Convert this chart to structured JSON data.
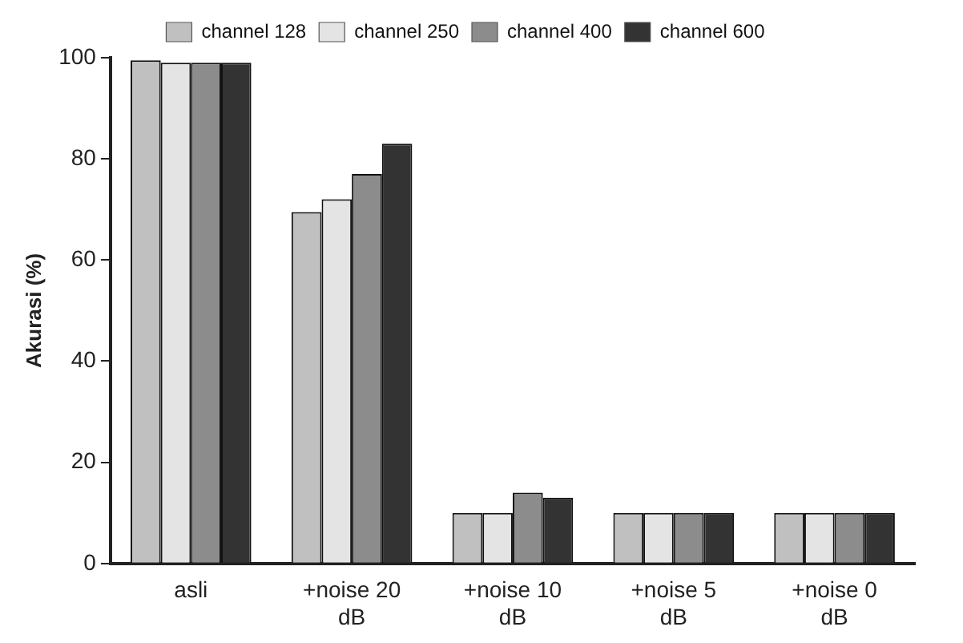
{
  "chart_data": {
    "type": "bar",
    "ylabel": "Akurasi (%)",
    "categories": [
      "asli",
      "+noise 20 dB",
      "+noise 10 dB",
      "+noise 5 dB",
      "+noise 0 dB"
    ],
    "series": [
      {
        "name": "channel 128",
        "color": "#c0c0c0",
        "values": [
          99.5,
          69.5,
          10,
          10,
          10
        ]
      },
      {
        "name": "channel 250",
        "color": "#e4e4e4",
        "values": [
          99,
          72,
          10,
          10,
          10
        ]
      },
      {
        "name": "channel 400",
        "color": "#8c8c8c",
        "values": [
          99,
          77,
          14,
          10,
          10
        ]
      },
      {
        "name": "channel 600",
        "color": "#333333",
        "values": [
          99,
          83,
          13,
          10,
          10
        ]
      }
    ],
    "ylim": [
      0,
      100
    ],
    "yticks": [
      0,
      20,
      40,
      60,
      80,
      100
    ],
    "grid": false,
    "legend": "top"
  }
}
